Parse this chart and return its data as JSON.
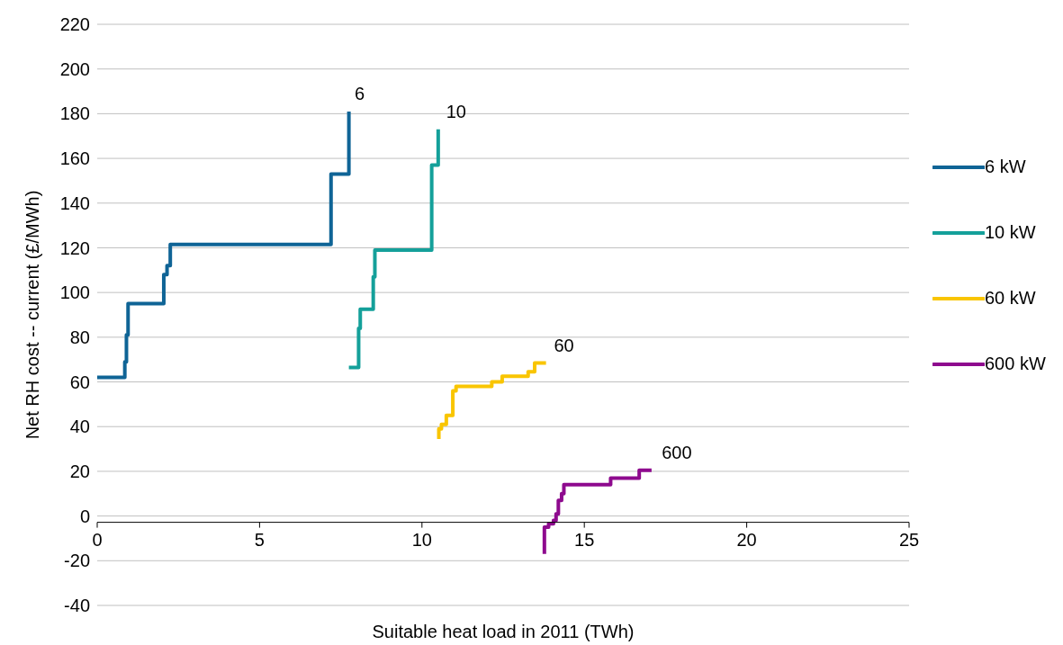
{
  "chart_data": {
    "type": "step",
    "xlabel": "Suitable heat load in 2011 (TWh)",
    "ylabel": "Net RH cost -- current (£/MWh)",
    "xlim": [
      0,
      25
    ],
    "xticks": [
      0,
      5,
      10,
      15,
      20,
      25
    ],
    "ylim": [
      -40,
      220
    ],
    "yticks": [
      -40,
      -20,
      0,
      20,
      40,
      60,
      80,
      100,
      120,
      140,
      160,
      180,
      200,
      220
    ],
    "grid": "y",
    "legend": "right",
    "marker": "none",
    "line_style": "solid",
    "series": [
      {
        "name": "6 kW",
        "color": "#0f6496",
        "x": [
          0,
          0.85,
          0.9,
          0.95,
          2.05,
          2.15,
          2.25,
          7.2,
          7.75
        ],
        "values": [
          62,
          69,
          81,
          95,
          108,
          112,
          121.5,
          153,
          181
        ]
      },
      {
        "name": "10 kW",
        "color": "#14a09a",
        "x": [
          7.75,
          8.05,
          8.1,
          8.5,
          8.55,
          10.3,
          10.5
        ],
        "values": [
          66.5,
          84,
          92.5,
          107,
          119,
          157,
          173
        ]
      },
      {
        "name": "60 kW",
        "color": "#f9c500",
        "x": [
          10.52,
          10.52,
          10.6,
          10.75,
          10.95,
          11.05,
          12.15,
          12.47,
          13.27,
          13.47,
          13.82
        ],
        "values": [
          34.5,
          39,
          41,
          45,
          56,
          58,
          60,
          62.5,
          64.5,
          68.5,
          68.5
        ]
      },
      {
        "name": "600 kW",
        "color": "#8e0a8e",
        "x": [
          13.77,
          13.77,
          13.9,
          14.05,
          14.13,
          14.2,
          14.3,
          14.37,
          15.81,
          16.69,
          17.07
        ],
        "values": [
          -17,
          -5,
          -3.5,
          -2,
          1,
          7,
          10,
          14,
          17,
          20.5,
          20.5
        ]
      }
    ],
    "annotations": [
      "6",
      "10",
      "60",
      "600"
    ]
  }
}
